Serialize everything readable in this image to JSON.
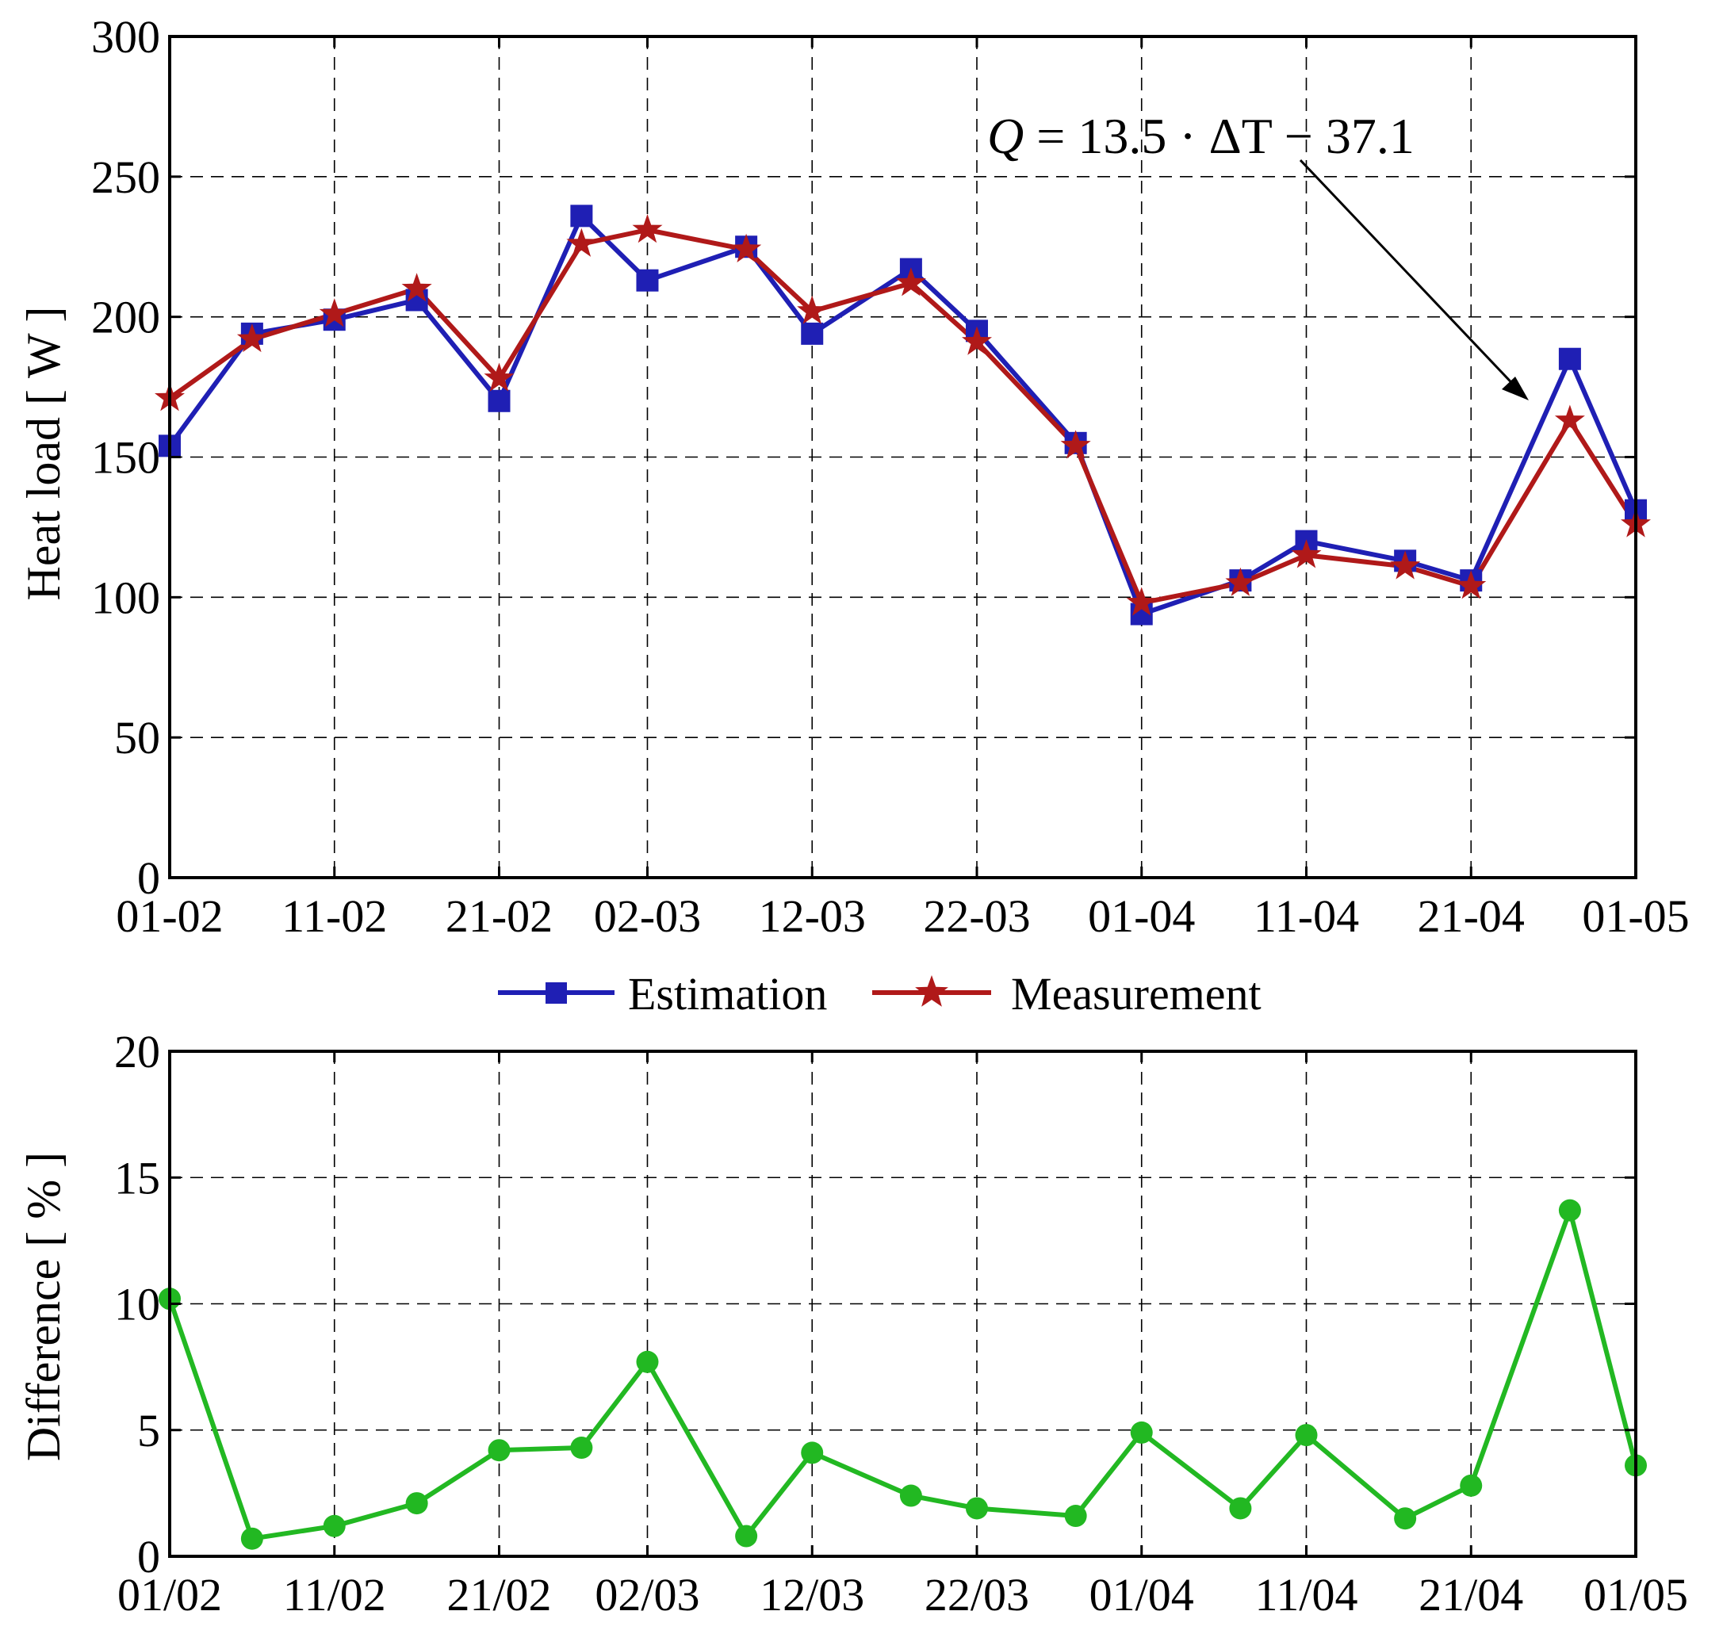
{
  "chart_data": [
    {
      "type": "line",
      "ylabel": "Heat load  [ W ]",
      "ylim": [
        0,
        300
      ],
      "yticks": [
        "0",
        "50",
        "100",
        "150",
        "200",
        "250",
        "300"
      ],
      "xlim": [
        0,
        89
      ],
      "xtick_labels": [
        "01-02",
        "11-02",
        "21-02",
        "02-03",
        "12-03",
        "22-03",
        "01-04",
        "11-04",
        "21-04",
        "01-05"
      ],
      "xtick_days": [
        0,
        10,
        20,
        29,
        39,
        49,
        59,
        69,
        79,
        89
      ],
      "x_days": [
        0,
        5,
        10,
        15,
        20,
        25,
        29,
        35,
        39,
        45,
        49,
        55,
        59,
        65,
        69,
        75,
        79,
        85,
        89
      ],
      "series": [
        {
          "name": "Estimation",
          "color": "#1f1fb4",
          "marker": "square",
          "values": [
            154,
            194,
            199,
            206,
            170,
            236,
            213,
            225,
            194,
            217,
            195,
            155,
            94,
            106,
            120,
            113,
            106,
            185,
            131
          ]
        },
        {
          "name": "Measurement",
          "color": "#b01919",
          "marker": "star",
          "values": [
            171,
            192,
            201,
            210,
            178,
            226,
            231,
            224,
            202,
            212,
            191,
            154,
            98,
            105,
            115,
            111,
            104,
            163,
            126
          ]
        }
      ],
      "legend": {
        "position": "below",
        "entries": [
          "Estimation",
          "Measurement"
        ]
      },
      "annotation": {
        "text_q": "Q",
        "text_rest": " = 13.5 · ΔT − 37.1"
      },
      "grid": true
    },
    {
      "type": "line",
      "ylabel": "Difference [ % ]",
      "ylim": [
        0,
        20
      ],
      "yticks": [
        "0",
        "5",
        "10",
        "15",
        "20"
      ],
      "xlim": [
        0,
        89
      ],
      "xtick_labels": [
        "01/02",
        "11/02",
        "21/02",
        "02/03",
        "12/03",
        "22/03",
        "01/04",
        "11/04",
        "21/04",
        "01/05"
      ],
      "xtick_days": [
        0,
        10,
        20,
        29,
        39,
        49,
        59,
        69,
        79,
        89
      ],
      "x_days": [
        0,
        5,
        10,
        15,
        20,
        25,
        29,
        35,
        39,
        45,
        49,
        55,
        59,
        65,
        69,
        75,
        79,
        85,
        89
      ],
      "series": [
        {
          "name": "Difference",
          "color": "#22b822",
          "marker": "circle",
          "values": [
            10.2,
            0.7,
            1.2,
            2.1,
            4.2,
            4.3,
            7.7,
            0.8,
            4.1,
            2.4,
            1.9,
            1.6,
            4.9,
            1.9,
            4.8,
            1.5,
            2.8,
            13.7,
            3.6
          ]
        }
      ],
      "grid": true
    }
  ]
}
